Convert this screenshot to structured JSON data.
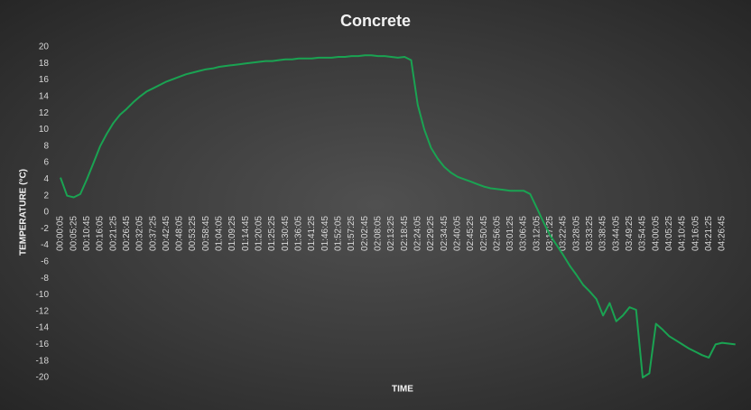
{
  "chart_data": {
    "type": "line",
    "title": "Concrete",
    "x_label": "TIME",
    "y_label": "TEMPERATURE   (°C)",
    "categories": [
      "00:00:05",
      null,
      "00:05:25",
      null,
      "00:10:45",
      null,
      "00:16:05",
      null,
      "00:21:25",
      null,
      "00:26:45",
      null,
      "00:32:05",
      null,
      "00:37:25",
      null,
      "00:42:45",
      null,
      "00:48:05",
      null,
      "00:53:25",
      null,
      "00:58:45",
      null,
      "01:04:05",
      null,
      "01:09:25",
      null,
      "01:14:45",
      null,
      "01:20:05",
      null,
      "01:25:25",
      null,
      "01:30:45",
      null,
      "01:36:05",
      null,
      "01:41:25",
      null,
      "01:46:45",
      null,
      "01:52:05",
      null,
      "01:57:25",
      null,
      "02:02:45",
      null,
      "02:08:05",
      null,
      "02:13:25",
      null,
      "02:18:45",
      null,
      "02:24:05",
      null,
      "02:29:25",
      null,
      "02:34:45",
      null,
      "02:40:05",
      null,
      "02:45:25",
      null,
      "02:50:45",
      null,
      "02:56:05",
      null,
      "03:01:25",
      null,
      "03:06:45",
      null,
      "03:12:05",
      null,
      "03:17:25",
      null,
      "03:22:45",
      null,
      "03:28:05",
      null,
      "03:33:25",
      null,
      "03:38:45",
      null,
      "03:44:05",
      null,
      "03:49:25",
      null,
      "03:54:45",
      null,
      "04:00:05",
      null,
      "04:05:25",
      null,
      "04:10:45",
      null,
      "04:16:05",
      null,
      "04:21:25",
      null,
      "04:26:45",
      null,
      null
    ],
    "values": [
      4.2,
      2,
      1.8,
      2.2,
      4,
      6,
      8,
      9.5,
      10.8,
      11.8,
      12.5,
      13.3,
      14,
      14.6,
      15,
      15.4,
      15.8,
      16.1,
      16.4,
      16.7,
      16.9,
      17.1,
      17.3,
      17.4,
      17.6,
      17.7,
      17.8,
      17.9,
      18,
      18.1,
      18.2,
      18.3,
      18.3,
      18.4,
      18.5,
      18.5,
      18.6,
      18.6,
      18.6,
      18.7,
      18.7,
      18.7,
      18.8,
      18.8,
      18.9,
      18.9,
      19,
      19,
      18.9,
      18.9,
      18.8,
      18.7,
      18.8,
      18.4,
      13,
      10,
      7.8,
      6.5,
      5.5,
      4.8,
      4.3,
      4,
      3.7,
      3.4,
      3.1,
      2.9,
      2.8,
      2.7,
      2.6,
      2.6,
      2.6,
      2.2,
      0.5,
      -1.2,
      -2.8,
      -4,
      -5.2,
      -6.5,
      -7.6,
      -8.8,
      -9.6,
      -10.5,
      -12.5,
      -11,
      -13.2,
      -12.5,
      -11.5,
      -11.8,
      -20,
      -19.5,
      -13.5,
      -14.2,
      -15,
      -15.5,
      -16,
      -16.5,
      -16.9,
      -17.3,
      -17.6,
      -16,
      -15.8,
      -15.9,
      -16
    ],
    "color": "#1aa352",
    "ylim": [
      -20,
      20
    ],
    "yticks": [
      -20,
      -18,
      -16,
      -14,
      -12,
      -10,
      -8,
      -6,
      -4,
      -2,
      0,
      2,
      4,
      6,
      8,
      10,
      12,
      14,
      16,
      18,
      20
    ],
    "grid": false
  }
}
